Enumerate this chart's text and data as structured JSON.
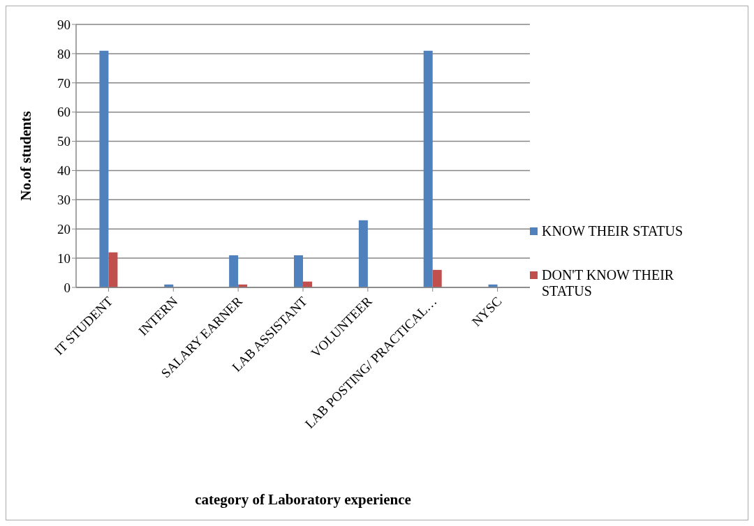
{
  "chart_data": {
    "type": "bar",
    "xlabel": "category of Laboratory experience",
    "ylabel": "No.of students",
    "categories": [
      "IT STUDENT",
      "INTERN",
      "SALARY EARNER",
      "LAB ASSISTANT",
      "VOLUNTEER",
      "LAB POSTING/ PRACTICAL…",
      "NYSC"
    ],
    "series": [
      {
        "name": "KNOW THEIR STATUS",
        "color": "#4f81bd",
        "values": [
          81,
          1,
          11,
          11,
          23,
          81,
          1
        ]
      },
      {
        "name": "DON'T KNOW THEIR STATUS",
        "color": "#c0504d",
        "values": [
          12,
          0,
          1,
          2,
          0,
          6,
          0
        ]
      }
    ],
    "ylim": [
      0,
      90
    ],
    "yticks": [
      0,
      10,
      20,
      30,
      40,
      50,
      60,
      70,
      80,
      90
    ],
    "grid": "y",
    "legend": "right"
  }
}
